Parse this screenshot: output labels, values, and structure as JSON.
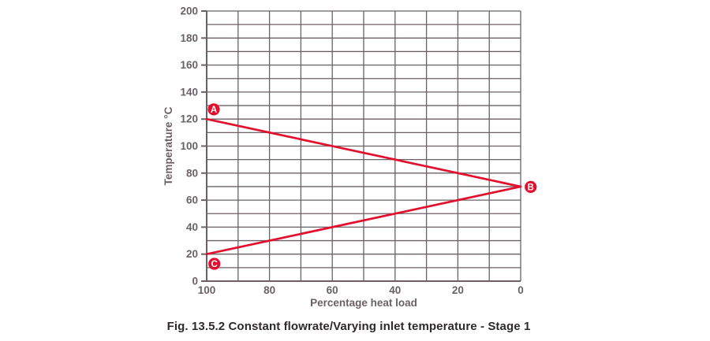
{
  "caption": "Fig. 13.5.2 Constant flowrate/Varying inlet temperature - Stage 1",
  "chart_data": {
    "type": "line",
    "title": "",
    "xlabel": "Percentage heat load",
    "ylabel": "Temperature °C",
    "xlim": [
      100,
      0
    ],
    "ylim": [
      0,
      200
    ],
    "x_axis_reversed": true,
    "grid": true,
    "x_grid_step": 10,
    "y_grid_step": 10,
    "x_tick_labels": [
      100,
      80,
      60,
      40,
      20,
      0
    ],
    "y_tick_labels": [
      0,
      20,
      40,
      60,
      80,
      100,
      120,
      140,
      160,
      180,
      200
    ],
    "series": [
      {
        "name": "A-B",
        "points": [
          [
            100,
            120
          ],
          [
            0,
            70
          ]
        ]
      },
      {
        "name": "B-C",
        "points": [
          [
            0,
            70
          ],
          [
            100,
            20
          ]
        ]
      }
    ],
    "markers": [
      {
        "label": "A",
        "x": 100,
        "y": 120
      },
      {
        "label": "B",
        "x": 0,
        "y": 70
      },
      {
        "label": "C",
        "x": 100,
        "y": 20
      }
    ]
  },
  "colors": {
    "line": "#e20f2d",
    "grid": "#6b6066",
    "axis": "#6b6066",
    "axis_text": "#6b6066",
    "marker_fill": "#e20f2d",
    "marker_text": "#ffffff",
    "caption_text": "#2e292c"
  }
}
